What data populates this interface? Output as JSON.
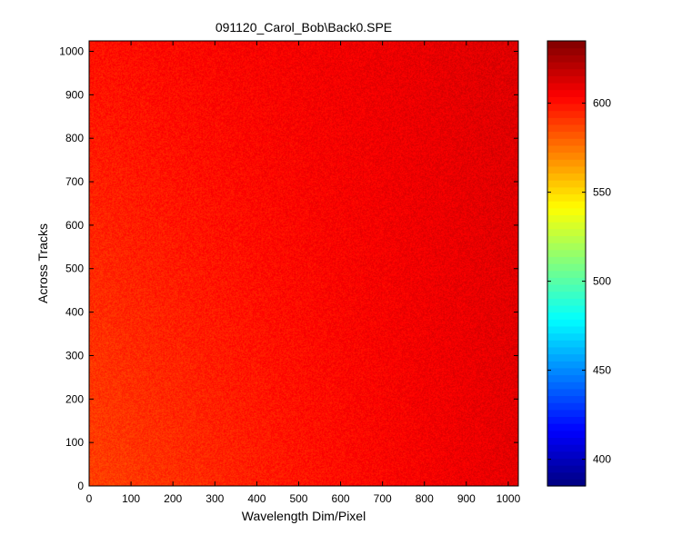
{
  "chart_data": {
    "type": "heatmap",
    "title": "091120_Carol_Bob\\Back0.SPE",
    "xlabel": "Wavelength Dim/Pixel",
    "ylabel": "Across Tracks",
    "xlim": [
      0,
      1024
    ],
    "ylim": [
      0,
      1024
    ],
    "x_ticks": [
      0,
      100,
      200,
      300,
      400,
      500,
      600,
      700,
      800,
      900,
      1000
    ],
    "y_ticks": [
      0,
      100,
      200,
      300,
      400,
      500,
      600,
      700,
      800,
      900,
      1000
    ],
    "colorbar": {
      "colormap": "jet",
      "range": [
        385,
        635
      ],
      "ticks": [
        400,
        450,
        500,
        550,
        600
      ]
    },
    "value_field": {
      "description_values": "approximate intensity (counts) at grid corners",
      "corner_bottom_left": 588,
      "corner_bottom_right": 610,
      "corner_top_left": 600,
      "corner_top_right": 612,
      "noise_amplitude": 6
    }
  }
}
